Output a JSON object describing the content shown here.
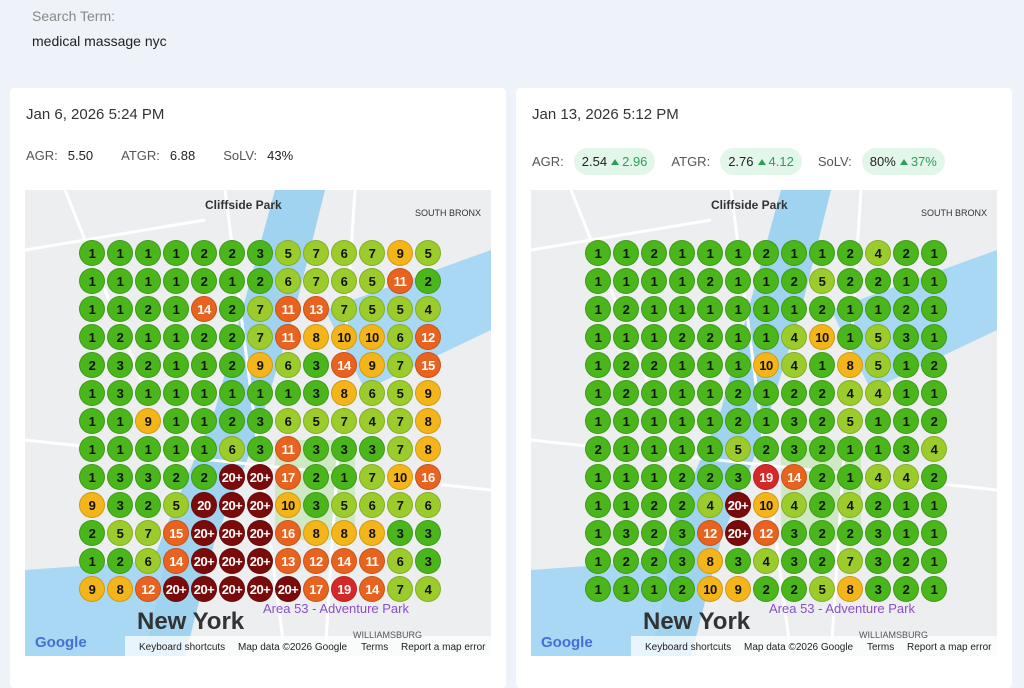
{
  "search": {
    "label": "Search Term:",
    "value": "medical massage nyc"
  },
  "cards": [
    {
      "date": "Jan 6, 2026 5:24 PM",
      "metrics": [
        {
          "name": "AGR:",
          "value": "5.50"
        },
        {
          "name": "ATGR:",
          "value": "6.88"
        },
        {
          "name": "SoLV:",
          "value": "43%"
        }
      ],
      "map_labels": [
        "Cliffside Park",
        "SOUTH BRONX",
        "New York",
        "Area 53 - Adventure Park",
        "WILLIAMSBURG",
        "Google",
        "Keyboard shortcuts",
        "Map data ©2026 Google",
        "Terms",
        "Report a map error"
      ],
      "grid": [
        [
          1,
          1,
          1,
          1,
          2,
          2,
          3,
          5,
          7,
          6,
          7,
          9,
          5
        ],
        [
          1,
          1,
          1,
          1,
          2,
          1,
          2,
          6,
          7,
          6,
          5,
          11,
          2
        ],
        [
          1,
          1,
          2,
          1,
          14,
          2,
          7,
          11,
          13,
          7,
          5,
          5,
          4
        ],
        [
          1,
          2,
          1,
          1,
          2,
          2,
          7,
          11,
          8,
          10,
          10,
          6,
          12
        ],
        [
          2,
          3,
          2,
          1,
          1,
          2,
          9,
          6,
          3,
          14,
          9,
          7,
          15
        ],
        [
          1,
          3,
          1,
          1,
          1,
          1,
          1,
          1,
          3,
          8,
          6,
          5,
          9
        ],
        [
          1,
          1,
          9,
          1,
          1,
          2,
          3,
          6,
          5,
          7,
          4,
          7,
          8
        ],
        [
          1,
          1,
          1,
          1,
          1,
          6,
          3,
          11,
          3,
          3,
          3,
          7,
          8
        ],
        [
          1,
          3,
          3,
          2,
          2,
          "20+",
          "20+",
          17,
          2,
          1,
          7,
          10,
          16
        ],
        [
          9,
          3,
          2,
          5,
          20,
          "20+",
          "20+",
          10,
          3,
          5,
          6,
          7,
          6
        ],
        [
          2,
          5,
          7,
          15,
          "20+",
          "20+",
          "20+",
          16,
          8,
          8,
          8,
          3,
          3
        ],
        [
          1,
          2,
          6,
          14,
          "20+",
          "20+",
          "20+",
          13,
          12,
          14,
          11,
          6,
          3
        ],
        [
          9,
          8,
          12,
          "20+",
          "20+",
          "20+",
          "20+",
          "20+",
          17,
          19,
          14,
          7,
          4
        ]
      ]
    },
    {
      "date": "Jan 13, 2026 5:12 PM",
      "metrics": [
        {
          "name": "AGR:",
          "value": "2.54",
          "change": "2.96"
        },
        {
          "name": "ATGR:",
          "value": "2.76",
          "change": "4.12"
        },
        {
          "name": "SoLV:",
          "value": "80%",
          "change": "37%"
        }
      ],
      "map_labels": [
        "Cliffside Park",
        "SOUTH BRONX",
        "New York",
        "Area 53 - Adventure Park",
        "WILLIAMSBURG",
        "Google",
        "Keyboard shortcuts",
        "Map data ©2026 Google",
        "Terms",
        "Report a map error"
      ],
      "grid": [
        [
          1,
          1,
          2,
          1,
          1,
          1,
          2,
          1,
          1,
          2,
          4,
          2,
          1
        ],
        [
          1,
          1,
          1,
          1,
          2,
          1,
          1,
          2,
          5,
          2,
          2,
          1,
          1
        ],
        [
          1,
          2,
          1,
          1,
          1,
          1,
          1,
          1,
          2,
          1,
          1,
          2,
          1
        ],
        [
          1,
          1,
          1,
          2,
          2,
          1,
          1,
          4,
          10,
          1,
          5,
          3,
          1
        ],
        [
          1,
          2,
          2,
          1,
          1,
          1,
          10,
          4,
          1,
          8,
          5,
          1,
          2
        ],
        [
          1,
          2,
          1,
          1,
          1,
          2,
          1,
          2,
          2,
          4,
          4,
          1,
          1
        ],
        [
          1,
          1,
          1,
          1,
          1,
          2,
          1,
          3,
          2,
          5,
          1,
          1,
          2
        ],
        [
          2,
          1,
          1,
          1,
          1,
          5,
          2,
          3,
          2,
          1,
          1,
          3,
          4
        ],
        [
          1,
          1,
          1,
          2,
          2,
          3,
          19,
          14,
          2,
          1,
          4,
          4,
          2
        ],
        [
          1,
          1,
          2,
          2,
          4,
          "20+",
          10,
          4,
          2,
          4,
          2,
          1,
          1
        ],
        [
          1,
          3,
          2,
          3,
          12,
          "20+",
          12,
          3,
          2,
          2,
          3,
          1,
          1
        ],
        [
          1,
          2,
          2,
          3,
          8,
          3,
          4,
          3,
          2,
          7,
          3,
          2,
          1
        ],
        [
          1,
          1,
          1,
          2,
          10,
          9,
          2,
          2,
          5,
          8,
          3,
          2,
          1
        ]
      ]
    }
  ]
}
